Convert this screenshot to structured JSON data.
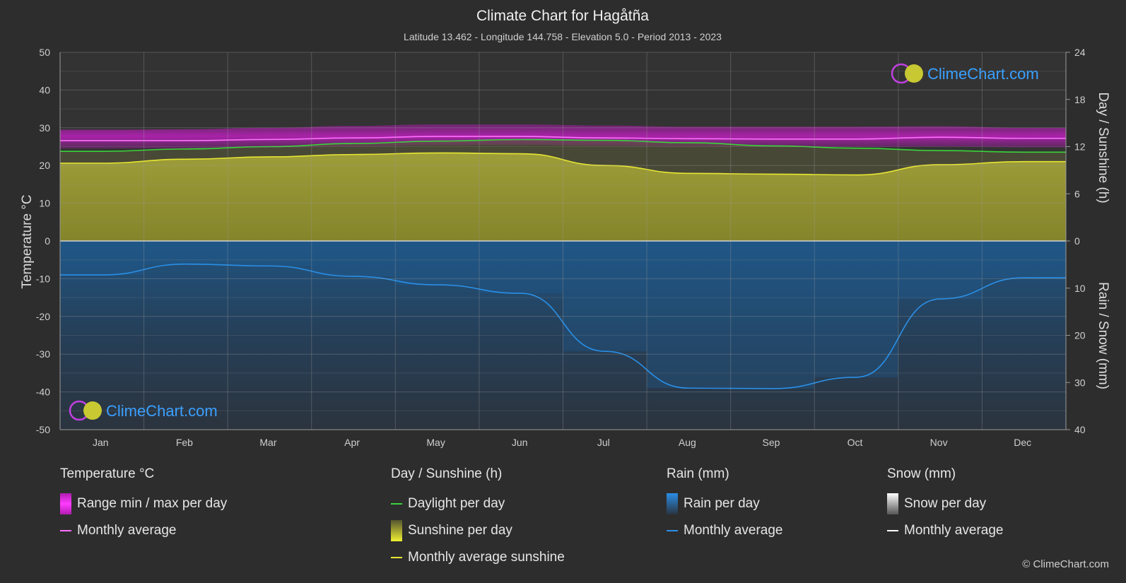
{
  "title": "Climate Chart for Hagåtña",
  "subtitle": "Latitude 13.462 - Longitude 144.758 - Elevation 5.0 - Period 2013 - 2023",
  "watermark": "ClimeChart.com",
  "copyright": "© ClimeChart.com",
  "chart_data": {
    "type": "line",
    "categories": [
      "Jan",
      "Feb",
      "Mar",
      "Apr",
      "May",
      "Jun",
      "Jul",
      "Aug",
      "Sep",
      "Oct",
      "Nov",
      "Dec"
    ],
    "y_left": {
      "label": "Temperature °C",
      "ylim": [
        -50,
        50
      ],
      "ticks": [
        50,
        40,
        30,
        20,
        10,
        0,
        -10,
        -20,
        -30,
        -40,
        -50
      ]
    },
    "y_right_top": {
      "label": "Day / Sunshine (h)",
      "ylim": [
        0,
        24
      ],
      "ticks": [
        24,
        18,
        12,
        6,
        0
      ]
    },
    "y_right_bottom": {
      "label": "Rain / Snow (mm)",
      "ylim": [
        0,
        40
      ],
      "ticks": [
        0,
        10,
        20,
        30,
        40
      ]
    },
    "grid": true,
    "series": [
      {
        "name": "Range min / max per day",
        "unit": "°C",
        "color": "#c81ec8",
        "min": [
          24.5,
          24.5,
          24.7,
          25.0,
          25.4,
          25.5,
          25.2,
          25.0,
          24.9,
          24.9,
          25.0,
          24.8
        ],
        "max": [
          29.5,
          29.6,
          30.0,
          30.5,
          30.9,
          30.9,
          30.6,
          30.3,
          30.3,
          30.3,
          30.4,
          30.0
        ]
      },
      {
        "name": "Monthly average",
        "unit": "°C",
        "color": "#ff70ff",
        "values": [
          26.6,
          26.6,
          26.9,
          27.3,
          27.7,
          27.7,
          27.3,
          27.1,
          27.0,
          27.0,
          27.5,
          27.2
        ]
      },
      {
        "name": "Daylight per day",
        "unit": "h",
        "color": "#3ad43a",
        "values": [
          11.4,
          11.7,
          12.0,
          12.4,
          12.7,
          12.9,
          12.8,
          12.5,
          12.1,
          11.8,
          11.5,
          11.3
        ]
      },
      {
        "name": "Sunshine per day",
        "unit": "h",
        "color": "#c8c832",
        "values": [
          9.9,
          10.4,
          10.7,
          11.0,
          11.2,
          11.1,
          9.6,
          8.6,
          8.5,
          8.4,
          9.7,
          10.1
        ]
      },
      {
        "name": "Monthly average sunshine",
        "unit": "h",
        "color": "#e6e632",
        "values": [
          9.9,
          10.4,
          10.7,
          11.0,
          11.2,
          11.1,
          9.6,
          8.6,
          8.5,
          8.4,
          9.7,
          10.1
        ]
      },
      {
        "name": "Rain per day",
        "unit": "mm",
        "color": "#1f6fb5",
        "values": [
          7.2,
          4.9,
          5.3,
          7.5,
          9.3,
          11.1,
          23.4,
          31.2,
          31.3,
          28.9,
          12.3,
          7.8
        ]
      },
      {
        "name": "Monthly average",
        "unit": "mm",
        "color": "#2a8fe6",
        "values": [
          7.2,
          4.9,
          5.3,
          7.5,
          9.3,
          11.1,
          23.4,
          31.2,
          31.3,
          28.9,
          12.3,
          7.8
        ]
      },
      {
        "name": "Snow per day",
        "unit": "mm",
        "color": "#cccccc",
        "values": [
          0,
          0,
          0,
          0,
          0,
          0,
          0,
          0,
          0,
          0,
          0,
          0
        ]
      },
      {
        "name": "Monthly average",
        "unit": "mm",
        "color": "#ffffff",
        "values": [
          0,
          0,
          0,
          0,
          0,
          0,
          0,
          0,
          0,
          0,
          0,
          0
        ]
      }
    ]
  },
  "legend": {
    "temperature": {
      "heading": "Temperature °C",
      "items": [
        "Range min / max per day",
        "Monthly average"
      ]
    },
    "sunshine": {
      "heading": "Day / Sunshine (h)",
      "items": [
        "Daylight per day",
        "Sunshine per day",
        "Monthly average sunshine"
      ]
    },
    "rain": {
      "heading": "Rain (mm)",
      "items": [
        "Rain per day",
        "Monthly average"
      ]
    },
    "snow": {
      "heading": "Snow (mm)",
      "items": [
        "Snow per day",
        "Monthly average"
      ]
    }
  }
}
